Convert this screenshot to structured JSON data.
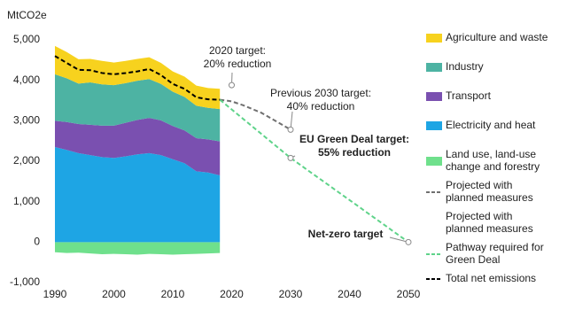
{
  "chart_data": {
    "type": "stacked_area",
    "y_axis_label": "MtCO2e",
    "xlim": [
      1990,
      2050
    ],
    "xticks": [
      1990,
      2000,
      2010,
      2020,
      2030,
      2040,
      2050
    ],
    "ylim": [
      -1000,
      5000
    ],
    "yticks": [
      {
        "value": -1000,
        "label": "-1,000"
      },
      0,
      {
        "value": 1000,
        "label": "1,000"
      },
      {
        "value": 2000,
        "label": "2,000"
      },
      {
        "value": 3000,
        "label": "3,000"
      },
      {
        "value": 4000,
        "label": "4,000"
      },
      {
        "value": 5000,
        "label": "5,000"
      }
    ],
    "series": [
      {
        "name": "Agriculture and waste",
        "style": "area",
        "color": "#f7d21e",
        "x": [
          1990,
          1992,
          1994,
          1996,
          1998,
          2000,
          2002,
          2004,
          2006,
          2008,
          2010,
          2012,
          2014,
          2016,
          2018
        ],
        "values": [
          700,
          650,
          600,
          580,
          580,
          560,
          550,
          540,
          540,
          520,
          500,
          500,
          500,
          490,
          500
        ]
      },
      {
        "name": "Industry",
        "style": "area",
        "color": "#4db3a3",
        "x": [
          1990,
          1992,
          1994,
          1996,
          1998,
          2000,
          2002,
          2004,
          2006,
          2008,
          2010,
          2012,
          2014,
          2016,
          2018
        ],
        "values": [
          1150,
          1080,
          1000,
          1050,
          1020,
          1000,
          980,
          970,
          960,
          900,
          850,
          830,
          800,
          780,
          800
        ]
      },
      {
        "name": "Transport",
        "style": "area",
        "color": "#7a50b0",
        "x": [
          1990,
          1992,
          1994,
          1996,
          1998,
          2000,
          2002,
          2004,
          2006,
          2008,
          2010,
          2012,
          2014,
          2016,
          2018
        ],
        "values": [
          650,
          690,
          720,
          750,
          780,
          800,
          830,
          850,
          870,
          860,
          820,
          810,
          820,
          820,
          840
        ]
      },
      {
        "name": "Electricity and heat",
        "style": "area",
        "color": "#1ea5e4",
        "x": [
          1990,
          1992,
          1994,
          1996,
          1998,
          2000,
          2002,
          2004,
          2006,
          2008,
          2010,
          2012,
          2014,
          2016,
          2018
        ],
        "values": [
          2350,
          2280,
          2200,
          2150,
          2100,
          2080,
          2120,
          2170,
          2200,
          2150,
          2050,
          1950,
          1750,
          1720,
          1650
        ]
      },
      {
        "name": "Land use, land-use change and  forestry",
        "style": "area",
        "color": "#6fe08c",
        "x": [
          1990,
          1992,
          1994,
          1996,
          1998,
          2000,
          2002,
          2004,
          2006,
          2008,
          2010,
          2012,
          2014,
          2016,
          2018
        ],
        "values": [
          -250,
          -270,
          -260,
          -280,
          -300,
          -290,
          -300,
          -310,
          -290,
          -300,
          -310,
          -300,
          -290,
          -280,
          -270
        ]
      },
      {
        "name": "Projected with planned measures",
        "style": "line",
        "color": "#707070",
        "x": [
          2018,
          2020,
          2022,
          2025,
          2028,
          2030
        ],
        "values": [
          3520,
          3480,
          3380,
          3200,
          2950,
          2780
        ]
      },
      {
        "name": "Projected with planned measures",
        "style": "none"
      },
      {
        "name": "Pathway required for Green Deal",
        "style": "line",
        "color": "#5fd38a",
        "x": [
          2018,
          2030,
          2050
        ],
        "values": [
          3520,
          2080,
          0
        ]
      },
      {
        "name": "Total net emissions",
        "style": "line",
        "color": "#000000",
        "x": [
          1990,
          1992,
          1994,
          1996,
          1998,
          2000,
          2002,
          2004,
          2006,
          2008,
          2010,
          2012,
          2014,
          2016,
          2018
        ],
        "values": [
          4600,
          4430,
          4260,
          4250,
          4180,
          4150,
          4180,
          4220,
          4280,
          4130,
          3910,
          3790,
          3580,
          3530,
          3520
        ]
      }
    ],
    "annotations": [
      {
        "lines": [
          "2020 target:",
          "20% reduction"
        ],
        "x": 2020,
        "y": 3880,
        "color": "#222222",
        "bold": false
      },
      {
        "lines": [
          "Previous 2030 target:",
          "40% reduction"
        ],
        "x": 2030,
        "y": 2780,
        "color": "#222222",
        "bold": false
      },
      {
        "lines": [
          "EU Green Deal target:",
          "55% reduction"
        ],
        "x": 2030,
        "y": 2080,
        "color": "#3cc46c",
        "bold": true
      },
      {
        "lines": [
          "Net-zero target"
        ],
        "x": 2050,
        "y": 0,
        "color": "#3cc46c",
        "bold": true
      }
    ]
  }
}
